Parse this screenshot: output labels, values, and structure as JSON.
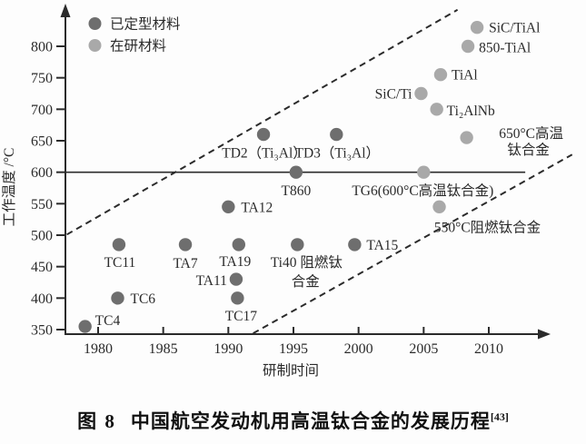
{
  "figure": {
    "caption": {
      "index_label": "图 8",
      "title": "中国航空发动机用高温钛合金的发展历程",
      "reference": "[43]"
    }
  },
  "chart_data": {
    "type": "scatter",
    "title": "",
    "xlabel": "研制时间",
    "ylabel": "工作温度 /°C",
    "xlim": [
      1977.5,
      2014.5
    ],
    "ylim": [
      343,
      850
    ],
    "x_ticks": [
      1980,
      1985,
      1990,
      1995,
      2000,
      2005,
      2010
    ],
    "y_ticks": [
      350,
      400,
      450,
      500,
      550,
      600,
      650,
      700,
      750,
      800
    ],
    "grid": false,
    "legend_position": "top-left-inside",
    "colors": {
      "finalized": "#6e6e6e",
      "in_research": "#a9a9a9",
      "ink": "#2b2b2b"
    },
    "legend": [
      {
        "key": "finalized",
        "label": "已定型材料"
      },
      {
        "key": "in_research",
        "label": "在研材料"
      }
    ],
    "reference_line": {
      "y": 600,
      "x1": 1977.5,
      "x2": 2012.8
    },
    "trend_band_lines": [
      {
        "position": "upper",
        "style": "dashed",
        "x1": 1977.6,
        "y1": 501,
        "x2": 2007.6,
        "y2": 858
      },
      {
        "position": "lower",
        "style": "dashed",
        "x1": 1991.9,
        "y1": 344,
        "x2": 2016.4,
        "y2": 628
      }
    ],
    "series": [
      {
        "name": "已定型材料",
        "key": "finalized",
        "points": [
          {
            "label": "TC4",
            "x": 1979,
            "y": 355,
            "label_lines": [
              {
                "text": "TC4",
                "dx": 11,
                "dy": -7,
                "anchor": "start"
              }
            ]
          },
          {
            "label": "TC6",
            "x": 1981.5,
            "y": 400,
            "label_lines": [
              {
                "text": "TC6",
                "dx": 14,
                "dy": 0,
                "anchor": "start"
              }
            ]
          },
          {
            "label": "TC11",
            "x": 1981.6,
            "y": 485,
            "label_lines": [
              {
                "text": "TC11",
                "dx": 1,
                "dy": 19,
                "anchor": "middle"
              }
            ]
          },
          {
            "label": "TA7",
            "x": 1986.7,
            "y": 485,
            "label_lines": [
              {
                "text": "TA7",
                "dx": 0,
                "dy": 20,
                "anchor": "middle"
              }
            ]
          },
          {
            "label": "TA19",
            "x": 1990.8,
            "y": 485,
            "label_lines": [
              {
                "text": "TA19",
                "dx": -4,
                "dy": 18,
                "anchor": "middle"
              }
            ]
          },
          {
            "label": "TA11",
            "x": 1990.6,
            "y": 430,
            "label_lines": [
              {
                "text": "TA11",
                "dx": -10,
                "dy": 1,
                "anchor": "end"
              }
            ]
          },
          {
            "label": "TC17",
            "x": 1990.7,
            "y": 400,
            "label_lines": [
              {
                "text": "TC17",
                "dx": 4,
                "dy": 19,
                "anchor": "middle"
              }
            ]
          },
          {
            "label": "TA12",
            "x": 1990,
            "y": 545,
            "label_lines": [
              {
                "text": "TA12",
                "dx": 14,
                "dy": 0,
                "anchor": "start"
              }
            ]
          },
          {
            "label": "Ti40 阻燃钛合金",
            "x": 1995.3,
            "y": 485,
            "label_lines": [
              {
                "text": "Ti40 阻燃钛",
                "dx": 10,
                "dy": 19,
                "anchor": "middle"
              },
              {
                "text": "合金",
                "dx": 9,
                "dy": 40,
                "anchor": "middle"
              }
            ]
          },
          {
            "label": "TA15",
            "x": 1999.7,
            "y": 485,
            "label_lines": [
              {
                "text": "TA15",
                "dx": 13,
                "dy": 0,
                "anchor": "start"
              }
            ]
          },
          {
            "label": "T860",
            "x": 1995.2,
            "y": 600,
            "label_lines": [
              {
                "text": "T860",
                "dx": 0,
                "dy": 20,
                "anchor": "middle"
              }
            ]
          },
          {
            "label": "TD2（Ti₃Al）",
            "x": 1992.7,
            "y": 660,
            "label_lines": [
              {
                "text": "TD2（Ti₃Al）",
                "dx": 1,
                "dy": 20,
                "anchor": "middle"
              }
            ]
          },
          {
            "label": "TD3（Ti₃Al）",
            "x": 1998.3,
            "y": 660,
            "label_lines": [
              {
                "text": "TD3（Ti₃Al）",
                "dx": 1,
                "dy": 20,
                "anchor": "middle"
              }
            ]
          }
        ]
      },
      {
        "name": "在研材料",
        "key": "in_research",
        "points": [
          {
            "label": "TG6(600°C高温钛合金)",
            "x": 2005,
            "y": 600,
            "label_lines": [
              {
                "text": "TG6(600°C高温钛合金)",
                "dx": -1,
                "dy": 20,
                "anchor": "middle"
              }
            ]
          },
          {
            "label": "550°C阻燃钛合金",
            "x": 2006.2,
            "y": 545,
            "label_lines": [
              {
                "text": "550°C阻燃钛合金",
                "dx": 53,
                "dy": 22,
                "anchor": "middle"
              }
            ]
          },
          {
            "label": "SiC/Ti",
            "x": 2004.8,
            "y": 725,
            "label_lines": [
              {
                "text": "SiC/Ti",
                "dx": -10,
                "dy": 0,
                "anchor": "end"
              }
            ]
          },
          {
            "label": "Ti₂AlNb",
            "x": 2006,
            "y": 700,
            "label_lines": [
              {
                "text": "Ti₂AlNb",
                "dx": 11,
                "dy": 1,
                "anchor": "start"
              }
            ]
          },
          {
            "label": "TiAl",
            "x": 2006.3,
            "y": 755,
            "label_lines": [
              {
                "text": "TiAl",
                "dx": 12,
                "dy": 0,
                "anchor": "start"
              }
            ]
          },
          {
            "label": "850-TiAl",
            "x": 2008.4,
            "y": 800,
            "label_lines": [
              {
                "text": "850-TiAl",
                "dx": 12,
                "dy": 1,
                "anchor": "start"
              }
            ]
          },
          {
            "label": "SiC/TiAl",
            "x": 2009.1,
            "y": 830,
            "label_lines": [
              {
                "text": "SiC/TiAl",
                "dx": 13,
                "dy": 0,
                "anchor": "start"
              }
            ]
          },
          {
            "label": "650°C高温钛合金",
            "x": 2008.3,
            "y": 655,
            "label_lines": [
              {
                "text": "650°C高温",
                "dx": 71,
                "dy": -5,
                "anchor": "middle"
              },
              {
                "text": "钛合金",
                "dx": 68,
                "dy": 13,
                "anchor": "middle"
              }
            ]
          }
        ]
      }
    ]
  }
}
